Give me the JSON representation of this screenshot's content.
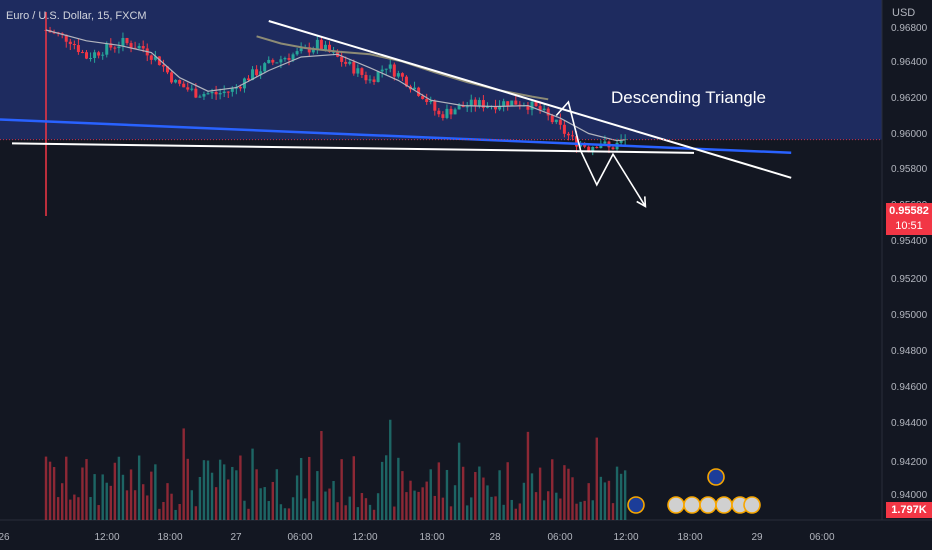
{
  "window": {
    "symbol_label": "Euro / U.S. Dollar, 15, FXCM",
    "annotation_text": "Descending Triangle",
    "currency_unit": "USD",
    "current_price_label": "0.95582",
    "countdown_label": "10:51",
    "volume_label": "1.797K"
  },
  "colors": {
    "background": "#131722",
    "shaded_zone": "#1e2b5f",
    "bull": "#26a69a",
    "bear": "#f23645",
    "support_line": "#2962ff",
    "ma_short": "#b2b5be",
    "ma_long": "#8d8b75",
    "drawing": "#ffffff"
  },
  "chart_data": {
    "type": "candlestick",
    "symbol": "Euro / U.S. Dollar",
    "interval": "15",
    "source": "FXCM",
    "price_unit": "USD",
    "y_axis_ticks": [
      "0.96800",
      "0.96400",
      "0.96200",
      "0.96000",
      "0.95800",
      "0.95600",
      "0.95400",
      "0.95200",
      "0.95000",
      "0.94800",
      "0.94600",
      "0.94400",
      "0.94200",
      "0.94000"
    ],
    "x_axis_ticks": [
      "26",
      "12:00",
      "18:00",
      "27",
      "06:00",
      "12:00",
      "18:00",
      "28",
      "06:00",
      "12:00",
      "18:00",
      "29",
      "06:00"
    ],
    "current_price": 0.95582,
    "bar_countdown": "10:51",
    "last_volume": "1.797K",
    "price_path": [
      [
        0,
        0.968
      ],
      [
        6,
        0.9669
      ],
      [
        10,
        0.965
      ],
      [
        14,
        0.9658
      ],
      [
        19,
        0.9666
      ],
      [
        24,
        0.966
      ],
      [
        28,
        0.9645
      ],
      [
        32,
        0.9621
      ],
      [
        37,
        0.961
      ],
      [
        42,
        0.9609
      ],
      [
        46,
        0.9613
      ],
      [
        50,
        0.9628
      ],
      [
        55,
        0.9642
      ],
      [
        59,
        0.965
      ],
      [
        63,
        0.9655
      ],
      [
        67,
        0.9664
      ],
      [
        71,
        0.9652
      ],
      [
        76,
        0.9637
      ],
      [
        80,
        0.9624
      ],
      [
        84,
        0.9641
      ],
      [
        88,
        0.9627
      ],
      [
        93,
        0.9608
      ],
      [
        97,
        0.9585
      ],
      [
        101,
        0.9593
      ],
      [
        106,
        0.9598
      ],
      [
        110,
        0.9597
      ],
      [
        114,
        0.96
      ],
      [
        118,
        0.9599
      ],
      [
        122,
        0.9591
      ],
      [
        126,
        0.9575
      ],
      [
        130,
        0.9558
      ],
      [
        134,
        0.955
      ],
      [
        137,
        0.9556
      ],
      [
        139,
        0.9548
      ],
      [
        141,
        0.9553
      ],
      [
        143,
        0.9558
      ]
    ],
    "moving_averages": [
      {
        "name": "MA short",
        "points": [
          [
            0,
            0.968
          ],
          [
            10,
            0.9668
          ],
          [
            18,
            0.9663
          ],
          [
            26,
            0.9655
          ],
          [
            33,
            0.9627
          ],
          [
            40,
            0.9612
          ],
          [
            47,
            0.9616
          ],
          [
            55,
            0.9635
          ],
          [
            63,
            0.965
          ],
          [
            72,
            0.9653
          ],
          [
            80,
            0.9638
          ],
          [
            87,
            0.9624
          ],
          [
            95,
            0.9602
          ],
          [
            103,
            0.9596
          ],
          [
            111,
            0.9595
          ],
          [
            119,
            0.9596
          ],
          [
            127,
            0.9582
          ],
          [
            134,
            0.9565
          ],
          [
            141,
            0.9557
          ],
          [
            143,
            0.9558
          ]
        ]
      },
      {
        "name": "MA long",
        "points": [
          [
            52,
            0.9673
          ],
          [
            58,
            0.9665
          ],
          [
            64,
            0.966
          ],
          [
            72,
            0.9656
          ],
          [
            80,
            0.9653
          ],
          [
            88,
            0.9645
          ],
          [
            96,
            0.9633
          ],
          [
            104,
            0.9622
          ],
          [
            112,
            0.9613
          ],
          [
            120,
            0.9606
          ],
          [
            124,
            0.9603
          ]
        ]
      }
    ],
    "trendlines": [
      {
        "role": "descending resistance",
        "from": [
          55,
          0.969
        ],
        "to": [
          184,
          0.95158
        ]
      },
      {
        "role": "horizontal support",
        "from": [
          2,
          0.9554
        ],
        "to": [
          160,
          0.95435
        ]
      },
      {
        "role": "support band",
        "from": [
          0,
          0.95805
        ],
        "to": [
          184,
          0.95436
        ]
      }
    ],
    "projection_path": [
      [
        126,
        0.9585
      ],
      [
        129,
        0.96
      ],
      [
        132,
        0.9546
      ],
      [
        136,
        0.9508
      ],
      [
        140,
        0.9542
      ],
      [
        148,
        0.9484
      ]
    ],
    "annotation": "Descending Triangle",
    "shaded_zone": {
      "from_price": 0.95582,
      "to": "top"
    }
  }
}
